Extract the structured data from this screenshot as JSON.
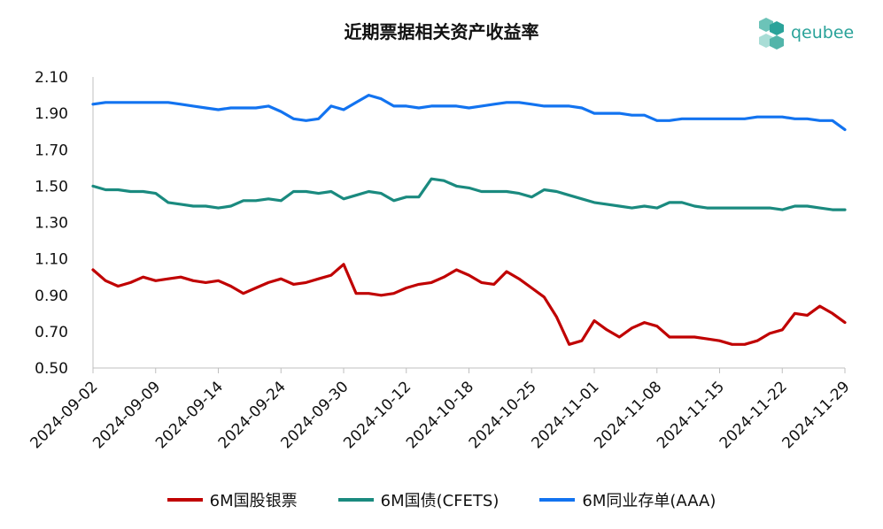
{
  "chart_data": {
    "type": "line",
    "title": "近期票据相关资产收益率",
    "ylim": [
      0.5,
      2.1
    ],
    "y_ticks": [
      "2.10",
      "1.90",
      "1.70",
      "1.50",
      "1.30",
      "1.10",
      "0.90",
      "0.70",
      "0.50"
    ],
    "x_tick_labels": [
      "2024-09-02",
      "2024-09-09",
      "2024-09-14",
      "2024-09-24",
      "2024-09-30",
      "2024-10-12",
      "2024-10-18",
      "2024-10-25",
      "2024-11-01",
      "2024-11-08",
      "2024-11-15",
      "2024-11-22",
      "2024-11-29"
    ],
    "x_tick_index": [
      0,
      5,
      10,
      15,
      20,
      25,
      30,
      35,
      40,
      45,
      50,
      55,
      60
    ],
    "grid": false,
    "legend_position": "bottom",
    "series": [
      {
        "name": "6M国股银票",
        "color": "#c00000",
        "values": [
          1.04,
          0.98,
          0.95,
          0.97,
          1.0,
          0.98,
          0.99,
          1.0,
          0.98,
          0.97,
          0.98,
          0.95,
          0.91,
          0.94,
          0.97,
          0.99,
          0.96,
          0.97,
          0.99,
          1.01,
          1.07,
          0.91,
          0.91,
          0.9,
          0.91,
          0.94,
          0.96,
          0.97,
          1.0,
          1.04,
          1.01,
          0.97,
          0.96,
          1.03,
          0.99,
          0.94,
          0.89,
          0.78,
          0.63,
          0.65,
          0.76,
          0.71,
          0.67,
          0.72,
          0.75,
          0.73,
          0.67,
          0.67,
          0.67,
          0.66,
          0.65,
          0.63,
          0.63,
          0.65,
          0.69,
          0.71,
          0.8,
          0.79,
          0.84,
          0.8,
          0.75
        ]
      },
      {
        "name": "6M国债(CFETS)",
        "color": "#1a8a7f",
        "values": [
          1.5,
          1.48,
          1.48,
          1.47,
          1.47,
          1.46,
          1.41,
          1.4,
          1.39,
          1.39,
          1.38,
          1.39,
          1.42,
          1.42,
          1.43,
          1.42,
          1.47,
          1.47,
          1.46,
          1.47,
          1.43,
          1.45,
          1.47,
          1.46,
          1.42,
          1.44,
          1.44,
          1.54,
          1.53,
          1.5,
          1.49,
          1.47,
          1.47,
          1.47,
          1.46,
          1.44,
          1.48,
          1.47,
          1.45,
          1.43,
          1.41,
          1.4,
          1.39,
          1.38,
          1.39,
          1.38,
          1.41,
          1.41,
          1.39,
          1.38,
          1.38,
          1.38,
          1.38,
          1.38,
          1.38,
          1.37,
          1.39,
          1.39,
          1.38,
          1.37,
          1.37
        ]
      },
      {
        "name": "6M同业存单(AAA)",
        "color": "#1273f0",
        "values": [
          1.95,
          1.96,
          1.96,
          1.96,
          1.96,
          1.96,
          1.96,
          1.95,
          1.94,
          1.93,
          1.92,
          1.93,
          1.93,
          1.93,
          1.94,
          1.91,
          1.87,
          1.86,
          1.87,
          1.94,
          1.92,
          1.96,
          2.0,
          1.98,
          1.94,
          1.94,
          1.93,
          1.94,
          1.94,
          1.94,
          1.93,
          1.94,
          1.95,
          1.96,
          1.96,
          1.95,
          1.94,
          1.94,
          1.94,
          1.93,
          1.9,
          1.9,
          1.9,
          1.89,
          1.89,
          1.86,
          1.86,
          1.87,
          1.87,
          1.87,
          1.87,
          1.87,
          1.87,
          1.88,
          1.88,
          1.88,
          1.87,
          1.87,
          1.86,
          1.86,
          1.81
        ]
      }
    ]
  },
  "logo": {
    "text": "qeubee",
    "color": "#2aa39a"
  }
}
